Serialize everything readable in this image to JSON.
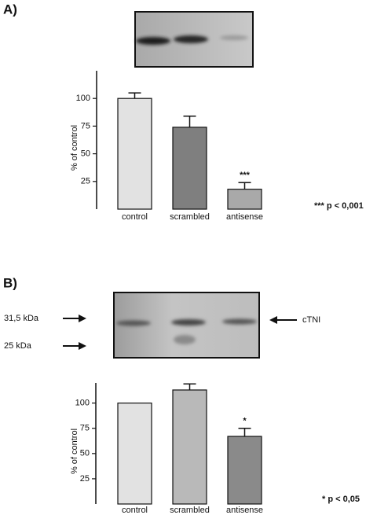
{
  "chart_data": [
    {
      "type": "bar",
      "panel": "A)",
      "ylabel": "% of control",
      "categories": [
        "control",
        "scrambled",
        "antisense"
      ],
      "values": [
        100,
        74,
        18
      ],
      "errors": [
        5,
        10,
        6
      ],
      "colors": [
        "#e2e2e2",
        "#7f7f7f",
        "#a9a9a9"
      ],
      "ylim": [
        0,
        125
      ],
      "yticks": [
        25,
        50,
        75,
        100
      ],
      "annotations": [
        {
          "text": "***",
          "category": "antisense"
        }
      ],
      "note": "*** p < 0,001"
    },
    {
      "type": "bar",
      "panel": "B)",
      "ylabel": "% of control",
      "categories": [
        "control",
        "scrambled",
        "antisense"
      ],
      "values": [
        100,
        113,
        67
      ],
      "errors": [
        null,
        6,
        8
      ],
      "colors": [
        "#e2e2e2",
        "#b9b9b9",
        "#8a8a8a"
      ],
      "ylim": [
        0,
        120
      ],
      "yticks": [
        25,
        50,
        75,
        100
      ],
      "annotations": [
        {
          "text": "*",
          "category": "antisense"
        }
      ],
      "note": "* p < 0,05",
      "blot_labels": {
        "left": [
          "31,5 kDa",
          "25 kDa"
        ],
        "right": "cTNI"
      }
    }
  ]
}
